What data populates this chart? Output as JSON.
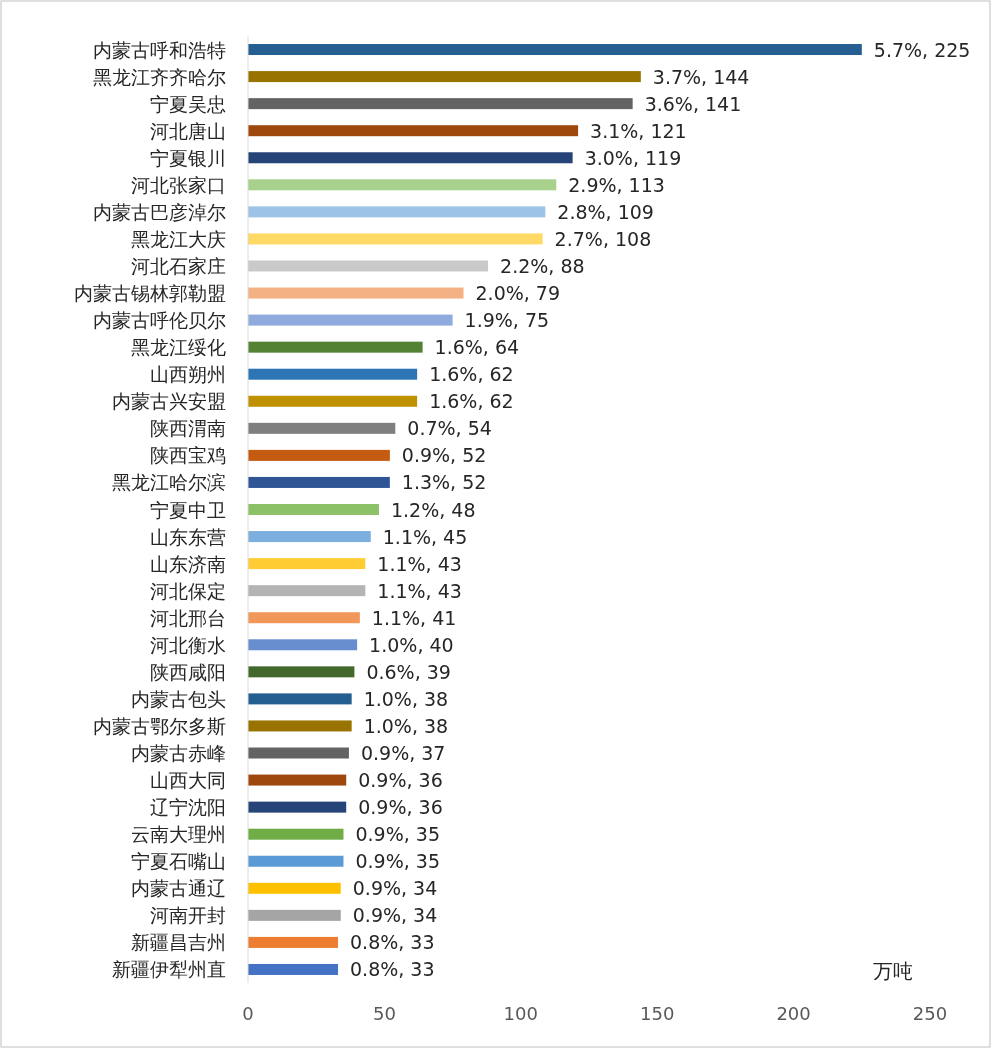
{
  "chart_data": {
    "type": "bar",
    "orientation": "horizontal",
    "xlabel": "万吨",
    "categories": [
      "内蒙古呼和浩特",
      "黑龙江齐齐哈尔",
      "宁夏吴忠",
      "河北唐山",
      "宁夏银川",
      "河北张家口",
      "内蒙古巴彦淖尔",
      "黑龙江大庆",
      "河北石家庄",
      "内蒙古锡林郭勒盟",
      "内蒙古呼伦贝尔",
      "黑龙江绥化",
      "山西朔州",
      "内蒙古兴安盟",
      "陕西渭南",
      "陕西宝鸡",
      "黑龙江哈尔滨",
      "宁夏中卫",
      "山东东营",
      "山东济南",
      "河北保定",
      "河北邢台",
      "河北衡水",
      "陕西咸阳",
      "内蒙古包头",
      "内蒙古鄂尔多斯",
      "内蒙古赤峰",
      "山西大同",
      "辽宁沈阳",
      "云南大理州",
      "宁夏石嘴山",
      "内蒙古通辽",
      "河南开封",
      "新疆昌吉州",
      "新疆伊犁州直"
    ],
    "values": [
      225,
      144,
      141,
      121,
      119,
      113,
      109,
      108,
      88,
      79,
      75,
      64,
      62,
      62,
      54,
      52,
      52,
      48,
      45,
      43,
      43,
      41,
      40,
      39,
      38,
      38,
      37,
      36,
      36,
      35,
      35,
      34,
      34,
      33,
      33
    ],
    "value_labels": [
      "5.7%, 225",
      "3.7%, 144",
      "3.6%, 141",
      "3.1%, 121",
      "3.0%, 119",
      "2.9%, 113",
      "2.8%, 109",
      "2.7%, 108",
      "2.2%, 88",
      "2.0%, 79",
      "1.9%, 75",
      "1.6%, 64",
      "1.6%, 62",
      "1.6%, 62",
      "0.7%, 54",
      "0.9%, 52",
      "1.3%, 52",
      "1.2%, 48",
      "1.1%, 45",
      "1.1%, 43",
      "1.1%, 43",
      "1.1%, 41",
      "1.0%, 40",
      "0.6%, 39",
      "1.0%, 38",
      "1.0%, 38",
      "0.9%, 37",
      "0.9%, 36",
      "0.9%, 36",
      "0.9%, 35",
      "0.9%, 35",
      "0.9%, 34",
      "0.9%, 34",
      "0.8%, 33",
      "0.8%, 33"
    ],
    "colors": [
      "#255e91",
      "#997300",
      "#636363",
      "#9e480e",
      "#264478",
      "#a9d18e",
      "#9dc3e6",
      "#ffd966",
      "#c9c9c9",
      "#f4b183",
      "#8faadc",
      "#548235",
      "#2e75b6",
      "#bf9000",
      "#7f7f7f",
      "#c55a11",
      "#2f5597",
      "#8cc168",
      "#7cafdd",
      "#ffcd33",
      "#b4b4b4",
      "#f1975a",
      "#698ed0",
      "#43682b",
      "#255e91",
      "#997300",
      "#636363",
      "#9e480e",
      "#264478",
      "#70ad47",
      "#5b9bd5",
      "#ffc000",
      "#a5a5a5",
      "#ed7d31",
      "#4472c4"
    ],
    "xlim": [
      0,
      250
    ],
    "xticks": [
      0,
      50,
      100,
      150,
      200,
      250
    ]
  }
}
